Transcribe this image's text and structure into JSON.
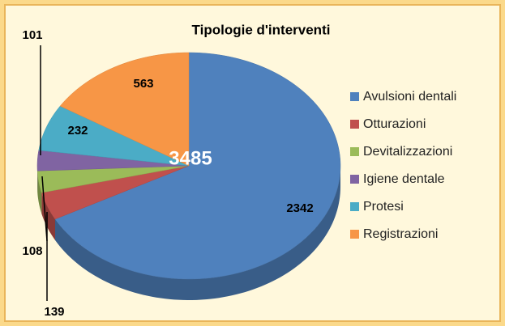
{
  "chart_data": {
    "type": "pie3d",
    "title": "Tipologie d'interventi",
    "categories": [
      "Avulsioni dentali",
      "Otturazioni",
      "Devitalizzazioni",
      "Igiene dentale",
      "Protesi",
      "Registrazioni"
    ],
    "values": [
      2342,
      139,
      108,
      101,
      232,
      563
    ],
    "colors": [
      "#4f81bd",
      "#c0504d",
      "#9bbb59",
      "#8064a2",
      "#4bacc6",
      "#f79646"
    ],
    "total": 3485,
    "legend": "right"
  }
}
